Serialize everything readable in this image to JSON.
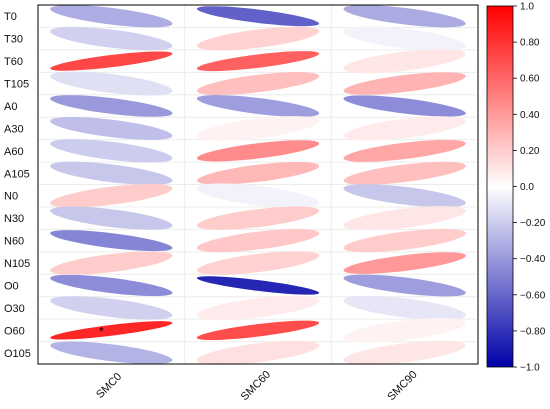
{
  "chart_data": {
    "type": "heatmap",
    "style": "ellipse correlation matrix",
    "rows": [
      "T0",
      "T30",
      "T60",
      "T105",
      "A0",
      "A30",
      "A60",
      "A105",
      "N0",
      "N30",
      "N60",
      "N105",
      "O0",
      "O30",
      "O60",
      "O105"
    ],
    "columns": [
      "SMC0",
      "SMC60",
      "SMC90"
    ],
    "values": [
      [
        -0.32,
        -0.62,
        -0.33
      ],
      [
        -0.18,
        0.18,
        -0.05
      ],
      [
        0.72,
        0.62,
        0.1
      ],
      [
        -0.12,
        0.25,
        0.3
      ],
      [
        -0.4,
        -0.38,
        -0.45
      ],
      [
        -0.25,
        0.05,
        0.08
      ],
      [
        -0.2,
        0.45,
        0.35
      ],
      [
        -0.22,
        0.28,
        0.25
      ],
      [
        0.2,
        -0.05,
        -0.22
      ],
      [
        -0.22,
        0.2,
        0.1
      ],
      [
        -0.48,
        0.22,
        0.2
      ],
      [
        0.2,
        0.18,
        0.4
      ],
      [
        -0.45,
        -0.85,
        -0.38
      ],
      [
        -0.18,
        0.08,
        -0.1
      ],
      [
        0.85,
        0.7,
        0.05
      ],
      [
        -0.3,
        0.12,
        0.1
      ]
    ],
    "significance_markers": [
      {
        "row": "O60",
        "column": "SMC0",
        "marker": "*"
      }
    ],
    "colorbar": {
      "range": [
        -1.0,
        1.0
      ],
      "ticks": [
        "1.0",
        "0.80",
        "0.60",
        "0.40",
        "0.20",
        "0.0",
        "−0.20",
        "−0.40",
        "−0.60",
        "−0.80",
        "−1.0"
      ],
      "colors": {
        "negative": "#0000a8",
        "zero": "#ffffff",
        "positive": "#ff0000"
      }
    },
    "grid": true,
    "legend": "right"
  }
}
